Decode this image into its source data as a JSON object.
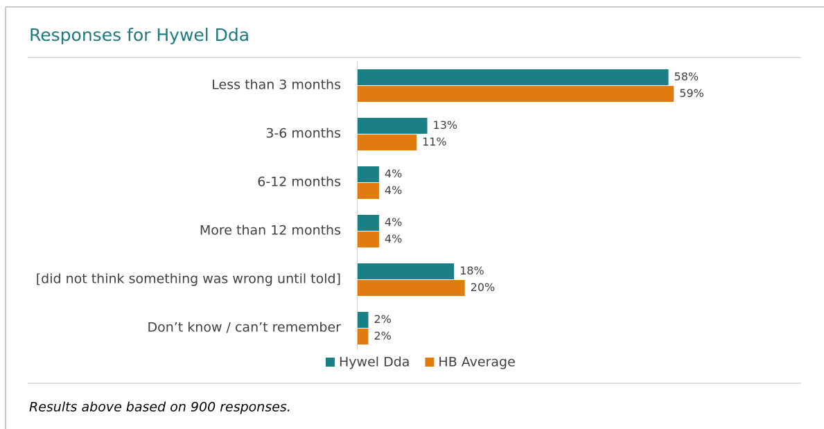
{
  "chart_data": {
    "type": "bar",
    "orientation": "horizontal",
    "title": "Responses for Hywel Dda",
    "categories": [
      "Less than 3 months",
      "3-6 months",
      "6-12 months",
      "More than 12 months",
      "[did not think something was wrong until told]",
      "Don’t know / can’t remember"
    ],
    "series": [
      {
        "name": "Hywel Dda",
        "color": "#1b7f86",
        "values": [
          58,
          13,
          4,
          4,
          18,
          2
        ],
        "value_labels": [
          "58%",
          "13%",
          "4%",
          "4%",
          "18%",
          "2%"
        ]
      },
      {
        "name": "HB Average",
        "color": "#e07b10",
        "values": [
          59,
          11,
          4,
          4,
          20,
          2
        ],
        "value_labels": [
          "59%",
          "11%",
          "4%",
          "4%",
          "20%",
          "2%"
        ]
      }
    ],
    "xlim": [
      0,
      75
    ],
    "legend": "bottom",
    "footnote": "Results above based on 900 responses."
  }
}
